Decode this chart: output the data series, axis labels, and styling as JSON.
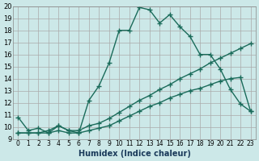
{
  "xlabel": "Humidex (Indice chaleur)",
  "ylabel": "",
  "bg_color": "#cce8e8",
  "grid_color": "#aaaaaa",
  "line_color": "#1a6b5a",
  "xlim": [
    0,
    23
  ],
  "ylim": [
    9,
    20
  ],
  "xticks": [
    0,
    1,
    2,
    3,
    4,
    5,
    6,
    7,
    8,
    9,
    10,
    11,
    12,
    13,
    14,
    15,
    16,
    17,
    18,
    19,
    20,
    21,
    22,
    23
  ],
  "yticks": [
    9,
    10,
    11,
    12,
    13,
    14,
    15,
    16,
    17,
    18,
    19,
    20
  ],
  "line1_x": [
    0,
    1,
    2,
    3,
    4,
    5,
    6,
    7,
    8,
    9,
    10,
    11,
    12,
    13,
    14,
    15,
    16,
    17,
    18,
    19,
    20,
    21,
    22,
    23
  ],
  "line1_y": [
    10.8,
    9.7,
    9.9,
    9.5,
    10.1,
    9.7,
    9.5,
    12.2,
    13.4,
    15.3,
    18.0,
    18.0,
    19.9,
    19.7,
    18.6,
    19.3,
    18.3,
    17.5,
    16.0,
    16.0,
    14.8,
    13.1,
    11.9,
    11.3
  ],
  "line2_x": [
    0,
    1,
    2,
    3,
    4,
    5,
    6,
    7,
    8,
    9,
    10,
    11,
    12,
    13,
    14,
    15,
    16,
    17,
    18,
    19,
    20,
    21,
    22,
    23
  ],
  "line2_y": [
    9.5,
    9.5,
    9.5,
    9.7,
    10.1,
    9.7,
    9.7,
    10.1,
    10.3,
    10.7,
    11.2,
    11.7,
    12.2,
    12.6,
    13.1,
    13.5,
    14.0,
    14.4,
    14.8,
    15.3,
    15.7,
    16.1,
    16.5,
    16.9
  ],
  "line3_x": [
    0,
    1,
    2,
    3,
    4,
    5,
    6,
    7,
    8,
    9,
    10,
    11,
    12,
    13,
    14,
    15,
    16,
    17,
    18,
    19,
    20,
    21,
    22,
    23
  ],
  "line3_y": [
    9.5,
    9.5,
    9.5,
    9.5,
    9.7,
    9.5,
    9.5,
    9.7,
    9.9,
    10.1,
    10.5,
    10.9,
    11.3,
    11.7,
    12.0,
    12.4,
    12.7,
    13.0,
    13.2,
    13.5,
    13.8,
    14.0,
    14.1,
    11.3
  ]
}
